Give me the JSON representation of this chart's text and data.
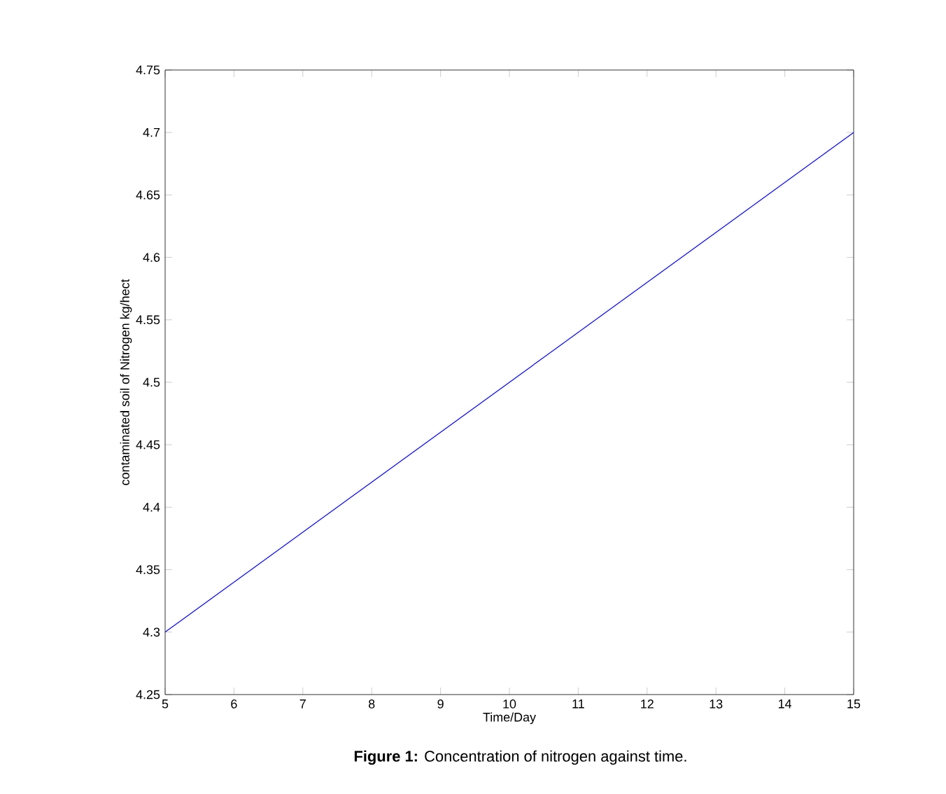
{
  "chart_data": {
    "type": "line",
    "xlabel": "Time/Day",
    "ylabel": "contaminated soil of Nitrogen kg/hect",
    "annotations": [
      "**Figure 1:** Concentration of nitrogen against time."
    ],
    "x": [
      5,
      15
    ],
    "values": [
      4.3,
      4.7
    ],
    "color": "#0000ff",
    "xlim": [
      5,
      15
    ],
    "ylim": [
      4.25,
      4.75
    ],
    "xticks": [
      5,
      6,
      7,
      8,
      9,
      10,
      11,
      12,
      13,
      14,
      15
    ],
    "yticks": [
      4.25,
      4.3,
      4.35,
      4.4,
      4.45,
      4.5,
      4.55,
      4.6,
      4.65,
      4.7,
      4.75
    ]
  }
}
